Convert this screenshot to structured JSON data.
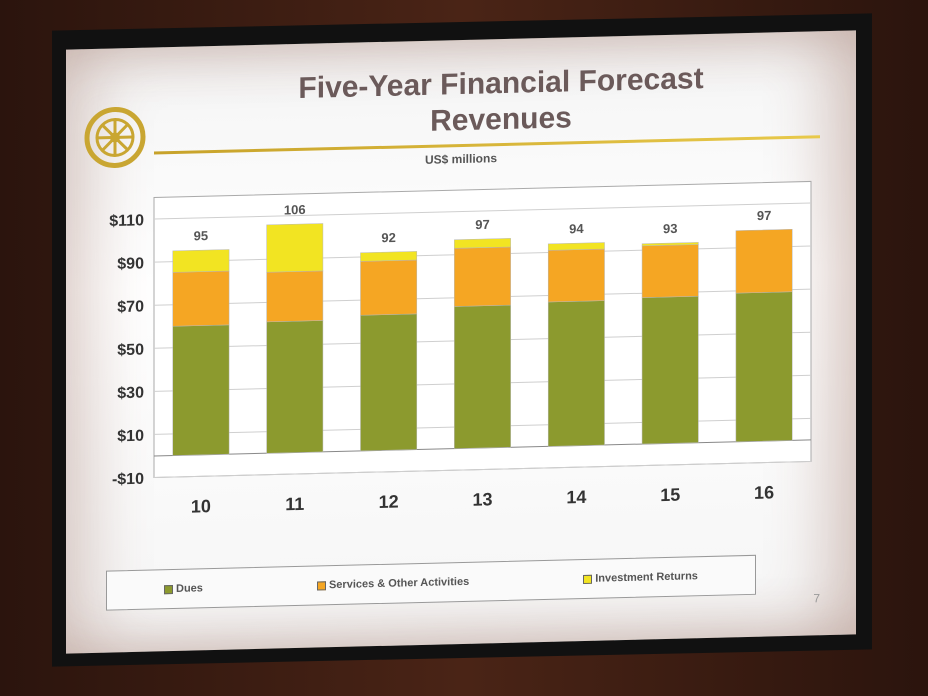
{
  "slide": {
    "title_line1": "Five-Year Financial Forecast",
    "title_line2": "Revenues",
    "subtitle": "US$ millions",
    "page_number": "7",
    "logo_icon": "rotary-wheel-icon"
  },
  "legend": {
    "dues": "Dues",
    "services": "Services & Other Activities",
    "investment": "Investment Returns"
  },
  "chart_data": {
    "type": "bar",
    "stacked": true,
    "title": "Five-Year Financial Forecast Revenues",
    "subtitle": "US$ millions",
    "categories": [
      "10",
      "11",
      "12",
      "13",
      "14",
      "15",
      "16"
    ],
    "series": [
      {
        "name": "Dues",
        "color": "#8c9a2e",
        "values": [
          60,
          61,
          63,
          66,
          67,
          68,
          69
        ]
      },
      {
        "name": "Services & Other Activities",
        "color": "#f5a623",
        "values": [
          25,
          23,
          25,
          27,
          24,
          24,
          29
        ]
      },
      {
        "name": "Investment Returns",
        "color": "#f2e422",
        "values": [
          10,
          22,
          4,
          4,
          3,
          1,
          -1
        ]
      }
    ],
    "totals": [
      95,
      106,
      92,
      97,
      94,
      93,
      97
    ],
    "yticks": [
      "-$10",
      "$10",
      "$30",
      "$50",
      "$70",
      "$90",
      "$110"
    ],
    "ytick_values": [
      -10,
      10,
      30,
      50,
      70,
      90,
      110
    ],
    "ylim": [
      -10,
      120
    ],
    "grid": true,
    "legend_position": "bottom"
  }
}
